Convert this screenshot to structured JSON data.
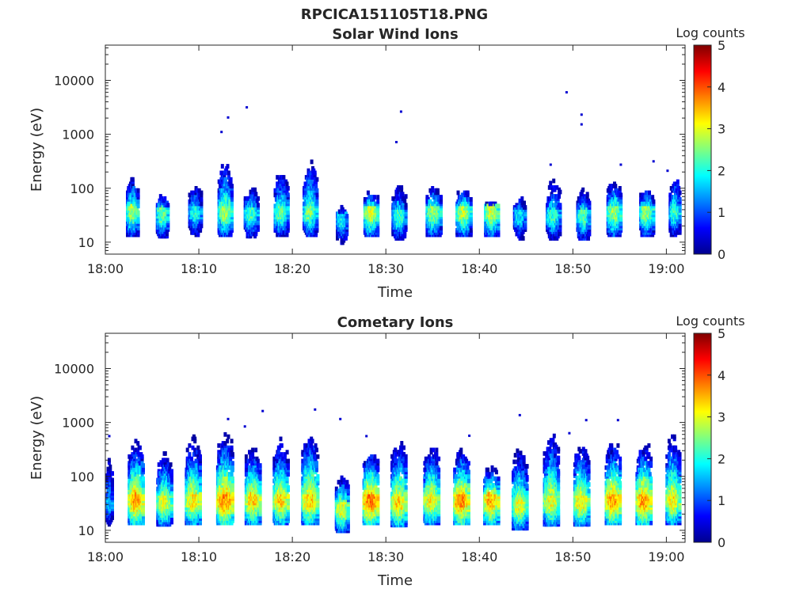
{
  "figure_title": "RPCICA151105T18.PNG",
  "chart_data": [
    {
      "type": "heatmap",
      "title": "Solar Wind Ions",
      "xlabel": "Time",
      "ylabel": "Energy (eV)",
      "x_ticks": [
        "18:00",
        "18:10",
        "18:20",
        "18:30",
        "18:40",
        "18:50",
        "19:00"
      ],
      "y_ticks": [
        "10",
        "100",
        "1000",
        "10000"
      ],
      "y_scale": "log",
      "xlim": [
        "18:00",
        "19:02"
      ],
      "ylim": [
        6,
        45000
      ],
      "colorbar": {
        "label": "Log counts",
        "range": [
          0,
          5
        ],
        "ticks": [
          "0",
          "1",
          "2",
          "3",
          "4",
          "5"
        ],
        "colormap": "jet"
      },
      "grid": false,
      "bursts": [
        {
          "t": 2.8,
          "w": 1.2,
          "e": 35,
          "peak": 2.6,
          "top": 150
        },
        {
          "t": 6.0,
          "w": 1.2,
          "e": 33,
          "peak": 2.4,
          "top": 70
        },
        {
          "t": 9.5,
          "w": 1.3,
          "e": 35,
          "peak": 2.0,
          "top": 100
        },
        {
          "t": 12.7,
          "w": 1.4,
          "e": 35,
          "peak": 2.7,
          "top": 280
        },
        {
          "t": 15.5,
          "w": 1.4,
          "e": 33,
          "peak": 2.2,
          "top": 90
        },
        {
          "t": 18.7,
          "w": 1.4,
          "e": 35,
          "peak": 2.4,
          "top": 180
        },
        {
          "t": 21.8,
          "w": 1.4,
          "e": 35,
          "peak": 2.5,
          "top": 280
        },
        {
          "t": 25.2,
          "w": 1.1,
          "e": 25,
          "peak": 1.9,
          "top": 40
        },
        {
          "t": 28.3,
          "w": 1.4,
          "e": 35,
          "peak": 2.9,
          "top": 80
        },
        {
          "t": 31.3,
          "w": 1.4,
          "e": 30,
          "peak": 2.2,
          "top": 100
        },
        {
          "t": 35.0,
          "w": 1.5,
          "e": 35,
          "peak": 2.6,
          "top": 100
        },
        {
          "t": 38.2,
          "w": 1.5,
          "e": 35,
          "peak": 2.8,
          "top": 90
        },
        {
          "t": 41.2,
          "w": 1.4,
          "e": 35,
          "peak": 2.9,
          "top": 50
        },
        {
          "t": 44.2,
          "w": 1.2,
          "e": 30,
          "peak": 1.8,
          "top": 60
        },
        {
          "t": 47.8,
          "w": 1.4,
          "e": 30,
          "peak": 2.1,
          "top": 120
        },
        {
          "t": 51.0,
          "w": 1.3,
          "e": 30,
          "peak": 2.3,
          "top": 80
        },
        {
          "t": 54.3,
          "w": 1.4,
          "e": 35,
          "peak": 2.7,
          "top": 120
        },
        {
          "t": 57.8,
          "w": 1.4,
          "e": 35,
          "peak": 2.6,
          "top": 90
        },
        {
          "t": 60.8,
          "w": 1.1,
          "e": 35,
          "peak": 2.2,
          "top": 150
        }
      ],
      "sparks": [
        {
          "t": 12.3,
          "e": 1050
        },
        {
          "t": 13.0,
          "e": 1950
        },
        {
          "t": 15.0,
          "e": 3000
        },
        {
          "t": 31.5,
          "e": 2500
        },
        {
          "t": 31.0,
          "e": 680
        },
        {
          "t": 49.2,
          "e": 5700
        },
        {
          "t": 50.8,
          "e": 2200
        },
        {
          "t": 50.8,
          "e": 1450
        },
        {
          "t": 47.5,
          "e": 260
        },
        {
          "t": 55.0,
          "e": 260
        },
        {
          "t": 58.5,
          "e": 300
        },
        {
          "t": 60.0,
          "e": 200
        }
      ]
    },
    {
      "type": "heatmap",
      "title": "Cometary Ions",
      "xlabel": "Time",
      "ylabel": "Energy (eV)",
      "x_ticks": [
        "18:00",
        "18:10",
        "18:20",
        "18:30",
        "18:40",
        "18:50",
        "19:00"
      ],
      "y_ticks": [
        "10",
        "100",
        "1000",
        "10000"
      ],
      "y_scale": "log",
      "xlim": [
        "18:00",
        "19:02"
      ],
      "ylim": [
        6,
        45000
      ],
      "colorbar": {
        "label": "Log counts",
        "range": [
          0,
          5
        ],
        "ticks": [
          "0",
          "1",
          "2",
          "3",
          "4",
          "5"
        ],
        "colormap": "jet"
      },
      "grid": false,
      "bursts": [
        {
          "t": 0.3,
          "w": 0.8,
          "e": 30,
          "peak": 1.6,
          "top": 200
        },
        {
          "t": 3.2,
          "w": 1.6,
          "e": 35,
          "peak": 3.6,
          "top": 420
        },
        {
          "t": 6.2,
          "w": 1.5,
          "e": 33,
          "peak": 3.0,
          "top": 250
        },
        {
          "t": 9.3,
          "w": 1.6,
          "e": 35,
          "peak": 3.2,
          "top": 450
        },
        {
          "t": 12.7,
          "w": 1.7,
          "e": 35,
          "peak": 3.7,
          "top": 550
        },
        {
          "t": 15.7,
          "w": 1.6,
          "e": 35,
          "peak": 3.3,
          "top": 350
        },
        {
          "t": 18.7,
          "w": 1.6,
          "e": 35,
          "peak": 3.3,
          "top": 420
        },
        {
          "t": 21.8,
          "w": 1.7,
          "e": 35,
          "peak": 3.3,
          "top": 650
        },
        {
          "t": 25.2,
          "w": 1.3,
          "e": 25,
          "peak": 3.0,
          "top": 90
        },
        {
          "t": 28.3,
          "w": 1.6,
          "e": 35,
          "peak": 3.8,
          "top": 300
        },
        {
          "t": 31.3,
          "w": 1.6,
          "e": 32,
          "peak": 3.3,
          "top": 400
        },
        {
          "t": 34.8,
          "w": 1.6,
          "e": 35,
          "peak": 3.2,
          "top": 350
        },
        {
          "t": 38.0,
          "w": 1.6,
          "e": 35,
          "peak": 3.7,
          "top": 300
        },
        {
          "t": 41.2,
          "w": 1.6,
          "e": 35,
          "peak": 3.5,
          "top": 150
        },
        {
          "t": 44.2,
          "w": 1.5,
          "e": 28,
          "peak": 3.0,
          "top": 300
        },
        {
          "t": 47.6,
          "w": 1.6,
          "e": 33,
          "peak": 3.1,
          "top": 550
        },
        {
          "t": 50.8,
          "w": 1.5,
          "e": 33,
          "peak": 3.2,
          "top": 400
        },
        {
          "t": 54.2,
          "w": 1.6,
          "e": 35,
          "peak": 3.6,
          "top": 420
        },
        {
          "t": 57.5,
          "w": 1.6,
          "e": 35,
          "peak": 3.6,
          "top": 400
        },
        {
          "t": 60.6,
          "w": 1.4,
          "e": 35,
          "peak": 3.2,
          "top": 550
        }
      ],
      "sparks": [
        {
          "t": 13.0,
          "e": 1100
        },
        {
          "t": 16.7,
          "e": 1550
        },
        {
          "t": 22.3,
          "e": 1650
        },
        {
          "t": 44.2,
          "e": 1300
        },
        {
          "t": 51.3,
          "e": 1050
        },
        {
          "t": 54.7,
          "e": 1050
        },
        {
          "t": 0.3,
          "e": 530
        },
        {
          "t": 25.0,
          "e": 1100
        },
        {
          "t": 38.8,
          "e": 540
        },
        {
          "t": 49.5,
          "e": 600
        },
        {
          "t": 14.8,
          "e": 800
        },
        {
          "t": 27.8,
          "e": 530
        }
      ]
    }
  ]
}
